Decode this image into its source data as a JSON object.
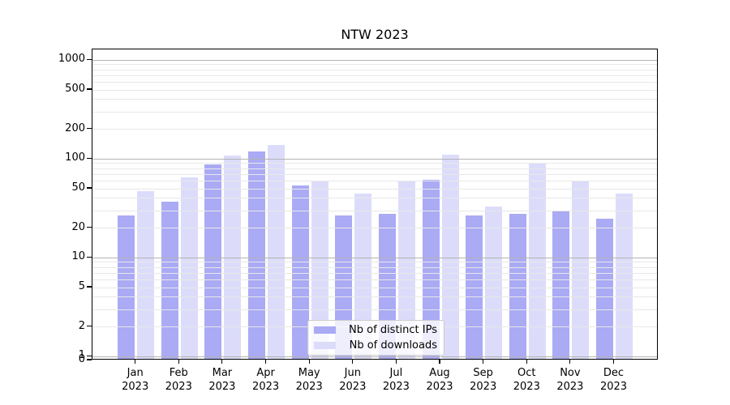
{
  "title": "NTW 2023",
  "chart_data": {
    "type": "bar",
    "title": "NTW 2023",
    "scale": "symlog",
    "categories": [
      "Jan",
      "Feb",
      "Mar",
      "Apr",
      "May",
      "Jun",
      "Jul",
      "Aug",
      "Sep",
      "Oct",
      "Nov",
      "Dec"
    ],
    "year_label": "2023",
    "series": [
      {
        "name": "Nb of distinct IPs",
        "color": "#aaaaf5",
        "values": [
          27,
          37,
          88,
          120,
          54,
          27,
          28,
          62,
          27,
          28,
          30,
          25
        ]
      },
      {
        "name": "Nb of downloads",
        "color": "#dcdcfa",
        "values": [
          47,
          65,
          108,
          140,
          61,
          45,
          59,
          110,
          33,
          90,
          59,
          45
        ]
      }
    ],
    "y_ticks": [
      1000,
      500,
      200,
      100,
      50,
      20,
      10,
      5,
      2,
      1,
      0
    ],
    "ylim": [
      0,
      1000
    ],
    "grid": true,
    "legend_position": "lower center"
  },
  "colors": {
    "major_grid": "#b3b3b3",
    "minor_grid": "#e8e8e8",
    "axis": "#000000",
    "legend_border": "#cccccc",
    "bar_dark": "#aaaaf5",
    "bar_light": "#dcdcfa"
  }
}
